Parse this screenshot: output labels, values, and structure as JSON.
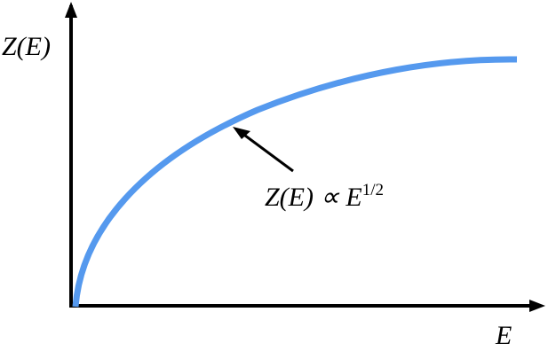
{
  "y_axis_label": "Z(E)",
  "x_axis_label": "E",
  "annotation": {
    "base": "Z(E) ∝ E",
    "exponent": "1/2"
  }
}
